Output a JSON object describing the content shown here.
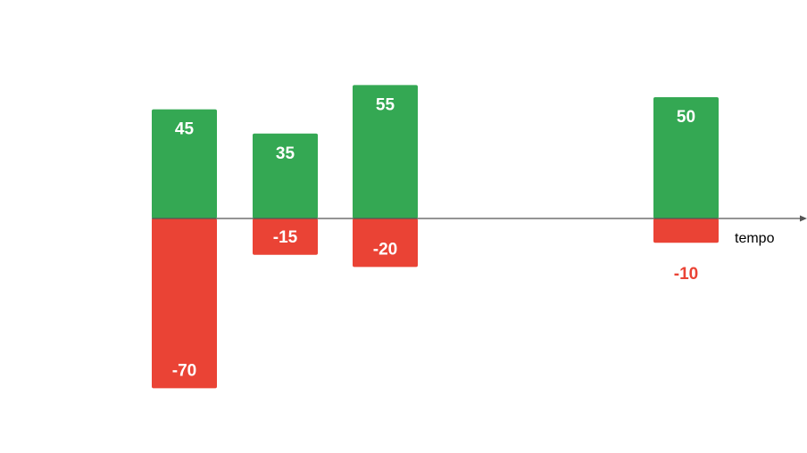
{
  "chart_data": {
    "type": "bar",
    "xlabel": "tempo",
    "ylabel": "",
    "title": "",
    "grid": false,
    "series": [
      {
        "values": [
          45,
          35,
          55,
          50
        ],
        "color": "#34a853"
      },
      {
        "values": [
          -70,
          -15,
          -20,
          -10
        ],
        "color": "#ea4335"
      }
    ],
    "colors": {
      "positive": "#34a853",
      "negative": "#ea4335",
      "positive_label": "#ffffff",
      "negative_label": "#ffffff",
      "outside_label": "#ea4335",
      "axis": "#555555"
    }
  }
}
